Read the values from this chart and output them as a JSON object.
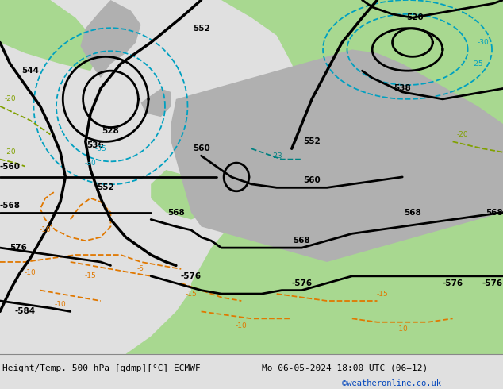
{
  "title_left": "Height/Temp. 500 hPa [gdmp][°C] ECMWF",
  "title_right": "Mo 06-05-2024 18:00 UTC (06+12)",
  "credit": "©weatheronline.co.uk",
  "bg_map_color": "#c8c8c8",
  "green_color": "#a8d890",
  "bottom_bar_color": "#e0e0e0",
  "col_z": "#000000",
  "col_cold": "#00a0c0",
  "col_warm": "#e07800",
  "col_teal": "#008080",
  "col_green_text": "#80a000"
}
